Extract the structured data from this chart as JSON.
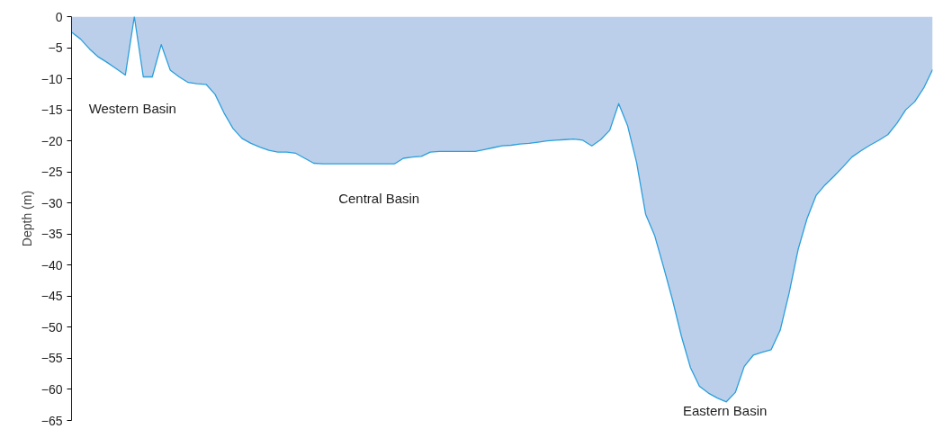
{
  "chart_data": {
    "type": "area",
    "ylabel": "Depth (m)",
    "ylim": [
      -65,
      0
    ],
    "yticks": [
      0,
      -5,
      -10,
      -15,
      -20,
      -25,
      -30,
      -35,
      -40,
      -45,
      -50,
      -55,
      -60,
      -65
    ],
    "grid": false,
    "tick_labels": "y",
    "categories": [
      null,
      null,
      null,
      null,
      null,
      null,
      null,
      null,
      null,
      null,
      null,
      null,
      null,
      null,
      null,
      null,
      null,
      null,
      null,
      null,
      null,
      null,
      null,
      null,
      null,
      null,
      null,
      null,
      null,
      null,
      null,
      null,
      null,
      null,
      null,
      null,
      null,
      null,
      null,
      null,
      null,
      null,
      null,
      null,
      null,
      null,
      null,
      null,
      null,
      null,
      null,
      null,
      null,
      null,
      null,
      null,
      null,
      null,
      null,
      null,
      null,
      null,
      null,
      null,
      null,
      null,
      null,
      null,
      null,
      null,
      null,
      null,
      null,
      null,
      null,
      null,
      null,
      null,
      null,
      null,
      null,
      null,
      null,
      null,
      null,
      null,
      null,
      null,
      null,
      null,
      null,
      null,
      null,
      null,
      null,
      null,
      null
    ],
    "series": [
      {
        "color": "#2a9fdc",
        "values": [
          -2.5,
          -3.6,
          -5.2,
          -6.5,
          -7.4,
          -8.4,
          -9.4,
          0,
          -9.7,
          -9.7,
          -4.5,
          -8.6,
          -9.7,
          -10.6,
          -10.8,
          -10.9,
          -12.5,
          -15.5,
          -18,
          -19.6,
          -20.4,
          -21,
          -21.5,
          -21.8,
          -21.8,
          -22,
          -22.8,
          -23.6,
          -23.7,
          -23.7,
          -23.7,
          -23.7,
          -23.7,
          -23.7,
          -23.7,
          -23.7,
          -23.7,
          -22.8,
          -22.6,
          -22.5,
          -21.8,
          -21.7,
          -21.7,
          -21.7,
          -21.7,
          -21.7,
          -21.4,
          -21.1,
          -20.8,
          -20.7,
          -20.5,
          -20.4,
          -20.2,
          -20,
          -19.9,
          -19.8,
          -19.7,
          -19.9,
          -20.8,
          -19.8,
          -18.3,
          -14,
          -17.6,
          -23.5,
          -31.8,
          -35.2,
          -40.3,
          -45.6,
          -51.5,
          -56.5,
          -59.5,
          -60.6,
          -61.4,
          -62,
          -60.5,
          -56.3,
          -54.5,
          -54,
          -53.6,
          -50.5,
          -44.5,
          -37.5,
          -32.5,
          -28.8,
          -27.1,
          -25.7,
          -24.2,
          -22.6,
          -21.6,
          -20.7,
          -19.9,
          -19,
          -17.2,
          -15,
          -13.7,
          -11.5,
          -8.5
        ]
      }
    ],
    "annotations": [
      "Western Basin",
      "Central Basin",
      "Eastern Basin"
    ]
  }
}
